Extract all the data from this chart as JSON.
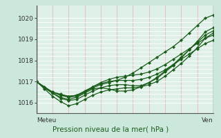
{
  "title": "Pression niveau de la mer( hPa )",
  "xlabel_left": "Meteu",
  "xlabel_right": "Ven",
  "ylim": [
    1015.5,
    1020.6
  ],
  "yticks": [
    1016,
    1017,
    1018,
    1019,
    1020
  ],
  "xlim": [
    0,
    22
  ],
  "background_color": "#cce8dc",
  "plot_bg_color": "#dff0e8",
  "grid_color_h": "#ffffff",
  "grid_color_v": "#e8b8b8",
  "line_color": "#1a5c1a",
  "lines": [
    [
      1017.0,
      1016.7,
      1016.5,
      1016.4,
      1016.3,
      1016.35,
      1016.5,
      1016.7,
      1016.85,
      1016.95,
      1017.05,
      1017.2,
      1017.4,
      1017.65,
      1017.9,
      1018.15,
      1018.4,
      1018.65,
      1018.95,
      1019.3,
      1019.65,
      1020.0,
      1020.15
    ],
    [
      1017.0,
      1016.65,
      1016.3,
      1016.05,
      1015.85,
      1015.95,
      1016.15,
      1016.35,
      1016.5,
      1016.6,
      1016.65,
      1016.7,
      1016.7,
      1016.75,
      1016.85,
      1017.0,
      1017.25,
      1017.55,
      1017.85,
      1018.2,
      1018.6,
      1019.05,
      1019.3
    ],
    [
      1017.0,
      1016.7,
      1016.45,
      1016.25,
      1016.15,
      1016.25,
      1016.45,
      1016.65,
      1016.7,
      1016.65,
      1016.55,
      1016.55,
      1016.6,
      1016.75,
      1016.95,
      1017.2,
      1017.5,
      1017.8,
      1018.15,
      1018.5,
      1018.85,
      1019.2,
      1019.4
    ],
    [
      1017.0,
      1016.7,
      1016.5,
      1016.35,
      1016.25,
      1016.3,
      1016.5,
      1016.75,
      1016.95,
      1017.1,
      1017.2,
      1017.25,
      1017.3,
      1017.35,
      1017.45,
      1017.6,
      1017.8,
      1018.05,
      1018.3,
      1018.55,
      1018.8,
      1019.05,
      1019.2
    ],
    [
      1017.0,
      1016.7,
      1016.45,
      1016.2,
      1016.1,
      1016.15,
      1016.35,
      1016.55,
      1016.7,
      1016.8,
      1016.85,
      1016.85,
      1016.8,
      1016.8,
      1016.95,
      1017.15,
      1017.45,
      1017.75,
      1018.1,
      1018.5,
      1018.9,
      1019.35,
      1019.55
    ],
    [
      1017.0,
      1016.75,
      1016.5,
      1016.35,
      1016.3,
      1016.35,
      1016.55,
      1016.75,
      1016.9,
      1017.0,
      1017.05,
      1017.05,
      1017.05,
      1017.1,
      1017.2,
      1017.35,
      1017.55,
      1017.8,
      1018.05,
      1018.3,
      1018.55,
      1018.8,
      1018.95
    ]
  ]
}
